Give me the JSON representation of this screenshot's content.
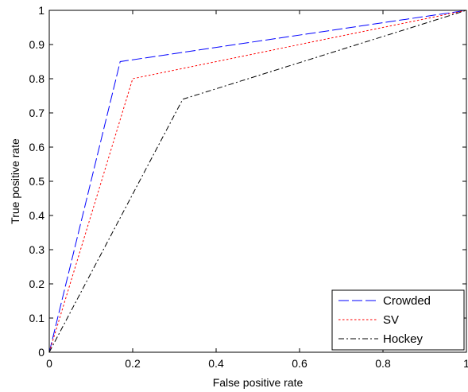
{
  "chart_data": {
    "type": "line",
    "title": "",
    "xlabel": "False positive rate",
    "ylabel": "True positive rate",
    "xlim": [
      0,
      1
    ],
    "ylim": [
      0,
      1
    ],
    "x_ticks": [
      0,
      0.2,
      0.4,
      0.6,
      0.8,
      1
    ],
    "x_tick_labels": [
      "0",
      "0.2",
      "0.4",
      "0.6",
      "0.8",
      "1"
    ],
    "y_ticks": [
      0,
      0.1,
      0.2,
      0.3,
      0.4,
      0.5,
      0.6,
      0.7,
      0.8,
      0.9,
      1
    ],
    "y_tick_labels": [
      "0",
      "0.1",
      "0.2",
      "0.3",
      "0.4",
      "0.5",
      "0.6",
      "0.7",
      "0.8",
      "0.9",
      "1"
    ],
    "grid": false,
    "legend_position": "bottom-right",
    "series": [
      {
        "name": "Crowded",
        "color": "#0000ff",
        "dash": "dashed",
        "x": [
          0,
          0.17,
          1
        ],
        "y": [
          0,
          0.85,
          1
        ]
      },
      {
        "name": "SV",
        "color": "#ff0000",
        "dash": "dotted",
        "x": [
          0,
          0.2,
          1
        ],
        "y": [
          0,
          0.8,
          1
        ]
      },
      {
        "name": "Hockey",
        "color": "#000000",
        "dash": "dash-dot",
        "x": [
          0,
          0.32,
          1
        ],
        "y": [
          0,
          0.74,
          1
        ]
      }
    ]
  }
}
